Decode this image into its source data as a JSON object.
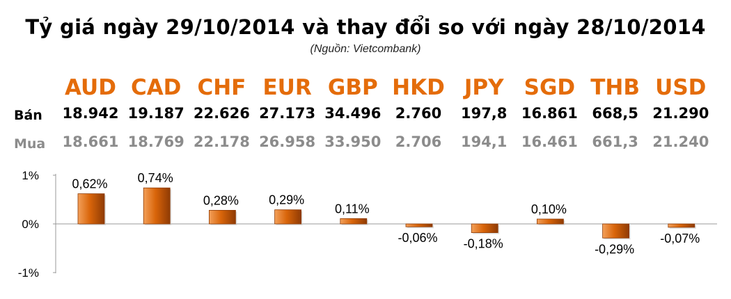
{
  "title": "Tỷ giá ngày 29/10/2014 và thay đổi so với ngày 28/10/2014",
  "source": "(Nguồn: Vietcombank)",
  "row_labels": {
    "sell": "Bán",
    "buy": "Mua"
  },
  "colors": {
    "currency": "#e46c0a",
    "bar": "#d9650a",
    "bar_dark": "#8f3b04",
    "buy_text": "#8c8c8c",
    "axis": "#999999"
  },
  "currencies": [
    {
      "code": "AUD",
      "sell": "18.942",
      "buy": "18.661",
      "change": "0,62%"
    },
    {
      "code": "CAD",
      "sell": "19.187",
      "buy": "18.769",
      "change": "0,74%"
    },
    {
      "code": "CHF",
      "sell": "22.626",
      "buy": "22.178",
      "change": "0,28%"
    },
    {
      "code": "EUR",
      "sell": "27.173",
      "buy": "26.958",
      "change": "0,29%"
    },
    {
      "code": "GBP",
      "sell": "34.496",
      "buy": "33.950",
      "change": "0,11%"
    },
    {
      "code": "HKD",
      "sell": "2.760",
      "buy": "2.706",
      "change": "-0,06%"
    },
    {
      "code": "JPY",
      "sell": "197,8",
      "buy": "194,1",
      "change": "-0,18%"
    },
    {
      "code": "SGD",
      "sell": "16.861",
      "buy": "16.461",
      "change": "0,10%"
    },
    {
      "code": "THB",
      "sell": "668,5",
      "buy": "661,3",
      "change": "-0,29%"
    },
    {
      "code": "USD",
      "sell": "21.290",
      "buy": "21.240",
      "change": "-0,07%"
    }
  ],
  "chart_data": {
    "type": "bar",
    "categories": [
      "AUD",
      "CAD",
      "CHF",
      "EUR",
      "GBP",
      "HKD",
      "JPY",
      "SGD",
      "THB",
      "USD"
    ],
    "values": [
      0.62,
      0.74,
      0.28,
      0.29,
      0.11,
      -0.06,
      -0.18,
      0.1,
      -0.29,
      -0.07
    ],
    "data_labels": [
      "0,62%",
      "0,74%",
      "0,28%",
      "0,29%",
      "0,11%",
      "-0,06%",
      "-0,18%",
      "0,10%",
      "-0,29%",
      "-0,07%"
    ],
    "yticks": [
      "1%",
      "0%",
      "-1%"
    ],
    "ylim": [
      -1,
      1
    ],
    "grid": false
  }
}
